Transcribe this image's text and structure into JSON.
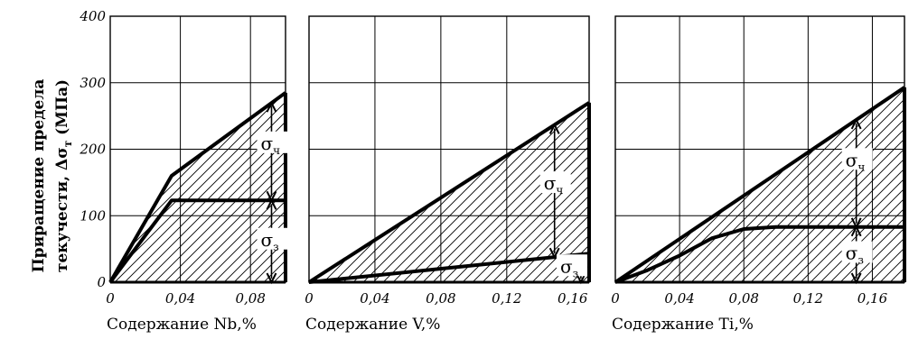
{
  "y_axis_label": {
    "line1": "Приращение предела",
    "line2": "текучести, Δσ",
    "line2_sub": "т",
    "line2_tail": " (МПа)"
  },
  "chart_data": [
    {
      "type": "area",
      "xlabel": "Содержание Nb,%",
      "ylabel": "Приращение предела текучести, Δσт (МПа)",
      "xlim": [
        0,
        0.1
      ],
      "ylim": [
        0,
        400
      ],
      "x_ticks": [
        "0",
        "0,04",
        "0,08"
      ],
      "x_tick_values": [
        0,
        0.04,
        0.08
      ],
      "y_ticks": [
        "0",
        "100",
        "200",
        "300",
        "400"
      ],
      "y_tick_values": [
        0,
        100,
        200,
        300,
        400
      ],
      "grid": true,
      "series": [
        {
          "name": "σч",
          "x": [
            0,
            0.035,
            0.1
          ],
          "y": [
            0,
            160,
            285
          ]
        },
        {
          "name": "σз",
          "x": [
            0,
            0.035,
            0.1
          ],
          "y": [
            0,
            123,
            123
          ]
        }
      ],
      "annotations": [
        {
          "text": "σ",
          "sub": "ч",
          "x": 0.092,
          "y": 205
        },
        {
          "text": "σ",
          "sub": "з",
          "x": 0.092,
          "y": 60
        }
      ]
    },
    {
      "type": "area",
      "xlabel": "Содержание V,%",
      "xlim": [
        0,
        0.17
      ],
      "ylim": [
        0,
        400
      ],
      "x_ticks": [
        "0",
        "0,04",
        "0,08",
        "0,12",
        "0,16"
      ],
      "x_tick_values": [
        0,
        0.04,
        0.08,
        0.12,
        0.16
      ],
      "y_ticks": [],
      "grid": true,
      "series": [
        {
          "name": "σч",
          "x": [
            0,
            0.17
          ],
          "y": [
            0,
            270
          ]
        },
        {
          "name": "σз",
          "x": [
            0,
            0.17
          ],
          "y": [
            0,
            43
          ]
        }
      ],
      "annotations": [
        {
          "text": "σ",
          "sub": "ч",
          "x": 0.149,
          "y": 145
        },
        {
          "text": "σ",
          "sub": "з",
          "x": 0.159,
          "y": 20
        }
      ]
    },
    {
      "type": "area",
      "xlabel": "Содержание Ti,%",
      "xlim": [
        0,
        0.18
      ],
      "ylim": [
        0,
        400
      ],
      "x_ticks": [
        "0",
        "0,04",
        "0,08",
        "0,12",
        "0,16"
      ],
      "x_tick_values": [
        0,
        0.04,
        0.08,
        0.12,
        0.16
      ],
      "y_ticks": [],
      "grid": true,
      "series": [
        {
          "name": "σч",
          "x": [
            0,
            0.18
          ],
          "y": [
            0,
            293
          ]
        },
        {
          "name": "σз",
          "x": [
            0,
            0.02,
            0.04,
            0.06,
            0.08,
            0.1,
            0.18
          ],
          "y": [
            0,
            18,
            40,
            66,
            80,
            83,
            83
          ]
        }
      ],
      "annotations": [
        {
          "text": "σ",
          "sub": "ч",
          "x": 0.15,
          "y": 180
        },
        {
          "text": "σ",
          "sub": "з",
          "x": 0.15,
          "y": 40
        }
      ]
    }
  ]
}
